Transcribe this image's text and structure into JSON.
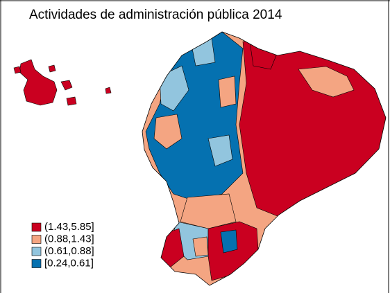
{
  "title": "Actividades de administración pública 2014",
  "legend": [
    {
      "label": "(1.43,5.85]",
      "color": "#ca0020"
    },
    {
      "label": "(0.88,1.43]",
      "color": "#f4a582"
    },
    {
      "label": "(0.61,0.88]",
      "color": "#92c5de"
    },
    {
      "label": "[0.24,0.61]",
      "color": "#0571b0"
    }
  ]
}
